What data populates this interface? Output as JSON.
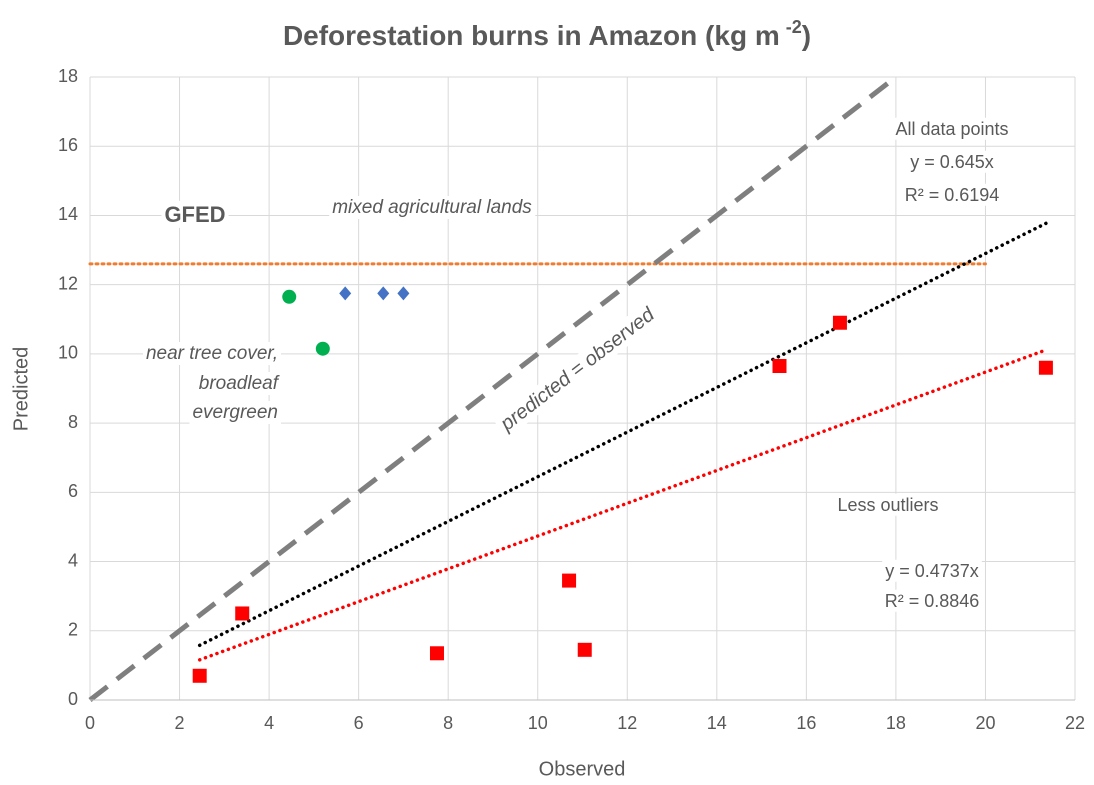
{
  "chart_data": {
    "type": "scatter",
    "title": "Deforestation burns in Amazon (kg m",
    "title_superscript": "-2",
    "title_end": ")",
    "x_label": "Observed",
    "y_label": "Predicted",
    "xlim": [
      0,
      22
    ],
    "xticks": [
      0,
      2,
      4,
      6,
      8,
      10,
      12,
      14,
      16,
      18,
      20,
      22
    ],
    "ylim": [
      0,
      18
    ],
    "yticks": [
      0,
      2,
      4,
      6,
      8,
      10,
      12,
      14,
      16,
      18
    ],
    "grid": true,
    "series": [
      {
        "color": "#ff0000",
        "marker": "square",
        "x": [
          2.45,
          3.4,
          7.75,
          10.7,
          11.05,
          15.4,
          16.75,
          21.35
        ],
        "values": [
          0.7,
          2.5,
          1.35,
          3.45,
          1.45,
          9.65,
          10.9,
          9.6
        ]
      },
      {
        "color": "#00b050",
        "marker": "circle",
        "x": [
          4.45,
          5.2
        ],
        "values": [
          11.65,
          10.15
        ],
        "labels": [
          "near tree cover,",
          "broadleaf",
          "evergreen"
        ]
      },
      {
        "color": "#4472c4",
        "marker": "diamond",
        "x": [
          5.7,
          6.55,
          7.0
        ],
        "values": [
          11.75,
          11.75,
          11.75
        ],
        "labels": [
          "mixed agricultural lands"
        ]
      }
    ],
    "trendlines": [
      {
        "slope": 0.645,
        "color": "#000000",
        "labels": [
          "All data points",
          "y = 0.645x",
          "R² = 0.6194"
        ]
      },
      {
        "slope": 0.4737,
        "color": "#ff0000",
        "labels": [
          "Less outliers",
          "y = 0.4737x",
          "R² = 0.8846"
        ]
      }
    ],
    "identity_line": {
      "label": "predicted = observed",
      "color": "#7f7f7f"
    },
    "reference_line": {
      "label": "GFED",
      "value": 12.6,
      "x_end": 20,
      "color": "#ed7d31"
    }
  }
}
